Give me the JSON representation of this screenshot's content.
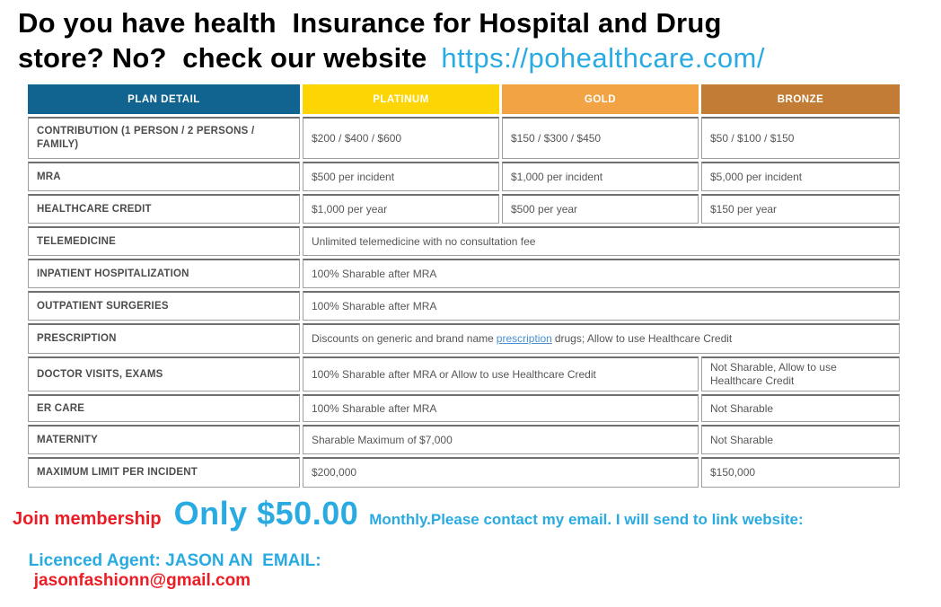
{
  "heading": {
    "line1": "Do you have health  Insurance for Hospital and Drug",
    "line2": "store? No?  check our website",
    "website_link": "https://pohealthcare.com/"
  },
  "table": {
    "columns": [
      "PLAN DETAIL",
      "PLATINUM",
      "GOLD",
      "BRONZE"
    ],
    "rows": [
      {
        "label": "CONTRIBUTION (1 PERSON / 2 PERSONS / FAMILY)",
        "type": "three",
        "values": [
          "$200 / $400 / $600",
          "$150 / $300 / $450",
          "$50 / $100 / $150"
        ]
      },
      {
        "label": "MRA",
        "type": "three",
        "values": [
          "$500 per incident",
          "$1,000 per incident",
          "$5,000 per incident"
        ]
      },
      {
        "label": "HEALTHCARE CREDIT",
        "type": "three",
        "values": [
          "$1,000 per year",
          "$500 per year",
          "$150 per year"
        ]
      },
      {
        "label": "TELEMEDICINE",
        "type": "all",
        "values": [
          "Unlimited telemedicine with no consultation fee"
        ]
      },
      {
        "label": "INPATIENT HOSPITALIZATION",
        "type": "all",
        "values": [
          "100% Sharable after MRA"
        ]
      },
      {
        "label": "OUTPATIENT SURGERIES",
        "type": "all",
        "values": [
          "100% Sharable after MRA"
        ]
      },
      {
        "label": "PRESCRIPTION",
        "type": "link",
        "prefix": "Discounts on generic and brand name",
        "link": "prescription",
        "suffix": "drugs; Allow to use Healthcare Credit"
      },
      {
        "label": "DOCTOR VISITS, EXAMS",
        "type": "split",
        "values": [
          "100% Sharable after MRA or Allow to use Healthcare Credit",
          "Not Sharable, Allow to use Healthcare Credit"
        ]
      },
      {
        "label": "ER CARE",
        "type": "split",
        "values": [
          "100% Sharable after MRA",
          "Not Sharable"
        ]
      },
      {
        "label": "MATERNITY",
        "type": "split",
        "values": [
          "Sharable Maximum of $7,000",
          "Not Sharable"
        ]
      },
      {
        "label": "MAXIMUM LIMIT PER INCIDENT",
        "type": "split",
        "values": [
          "$200,000",
          "$150,000"
        ]
      }
    ]
  },
  "footer": {
    "join_label": "Join membership",
    "price": "Only $50.00",
    "monthly_note": "Monthly.Please contact my email. I will send to link website:",
    "agent_label": "Licenced Agent: JASON AN  EMAIL:",
    "agent_email": "jasonfashionn@gmail.com"
  },
  "colors": {
    "header_plan_detail": "#11648F",
    "header_platinum": "#FDD404",
    "header_gold": "#F2A444",
    "header_bronze": "#C27C35",
    "accent_cyan": "#29ABE2",
    "accent_red": "#EC1C24",
    "prescription_link_blue": "#4A90D2",
    "row_label_text": "#4C4C4C",
    "cell_text": "#565656",
    "cell_border": "#9F9F9F"
  }
}
